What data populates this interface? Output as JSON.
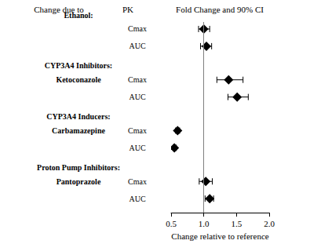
{
  "chart_data": {
    "type": "forest",
    "column_headers": [
      "Change due to",
      "PK",
      "Fold Change and 90% CI"
    ],
    "xlabel": "Change relative to reference",
    "xlim": [
      0.5,
      2.0
    ],
    "xticks": [
      0.5,
      {
        "value": 1.0,
        "label": "1.0"
      },
      1.5,
      {
        "value": 2.0,
        "label": "2.0"
      }
    ],
    "reference": 1.0,
    "color": "#000000",
    "marker": "diamond",
    "groups": [
      {
        "label": "Ethanol:",
        "rows": [
          {
            "pk": "Cmax",
            "estimate": 1.0,
            "ci_low": 0.92,
            "ci_high": 1.09
          },
          {
            "pk": "AUC",
            "estimate": 1.04,
            "ci_low": 0.95,
            "ci_high": 1.12
          }
        ]
      },
      {
        "label": "CYP3A4 Inhibitors:",
        "drug": "Ketoconazole",
        "rows": [
          {
            "pk": "Cmax",
            "estimate": 1.38,
            "ci_low": 1.2,
            "ci_high": 1.6
          },
          {
            "pk": "AUC",
            "estimate": 1.51,
            "ci_low": 1.37,
            "ci_high": 1.68
          }
        ]
      },
      {
        "label": "CYP3A4 Inducers:",
        "drug": "Carbamazepine",
        "rows": [
          {
            "pk": "Cmax",
            "estimate": 0.6,
            "ci_low": 0.57,
            "ci_high": 0.63
          },
          {
            "pk": "AUC",
            "estimate": 0.55,
            "ci_low": 0.53,
            "ci_high": 0.58
          }
        ]
      },
      {
        "label": "Proton Pump Inhibitors:",
        "drug": "Pantoprazole",
        "rows": [
          {
            "pk": "Cmax",
            "estimate": 1.03,
            "ci_low": 0.93,
            "ci_high": 1.13
          },
          {
            "pk": "AUC",
            "estimate": 1.09,
            "ci_low": 1.02,
            "ci_high": 1.15
          }
        ]
      }
    ]
  }
}
